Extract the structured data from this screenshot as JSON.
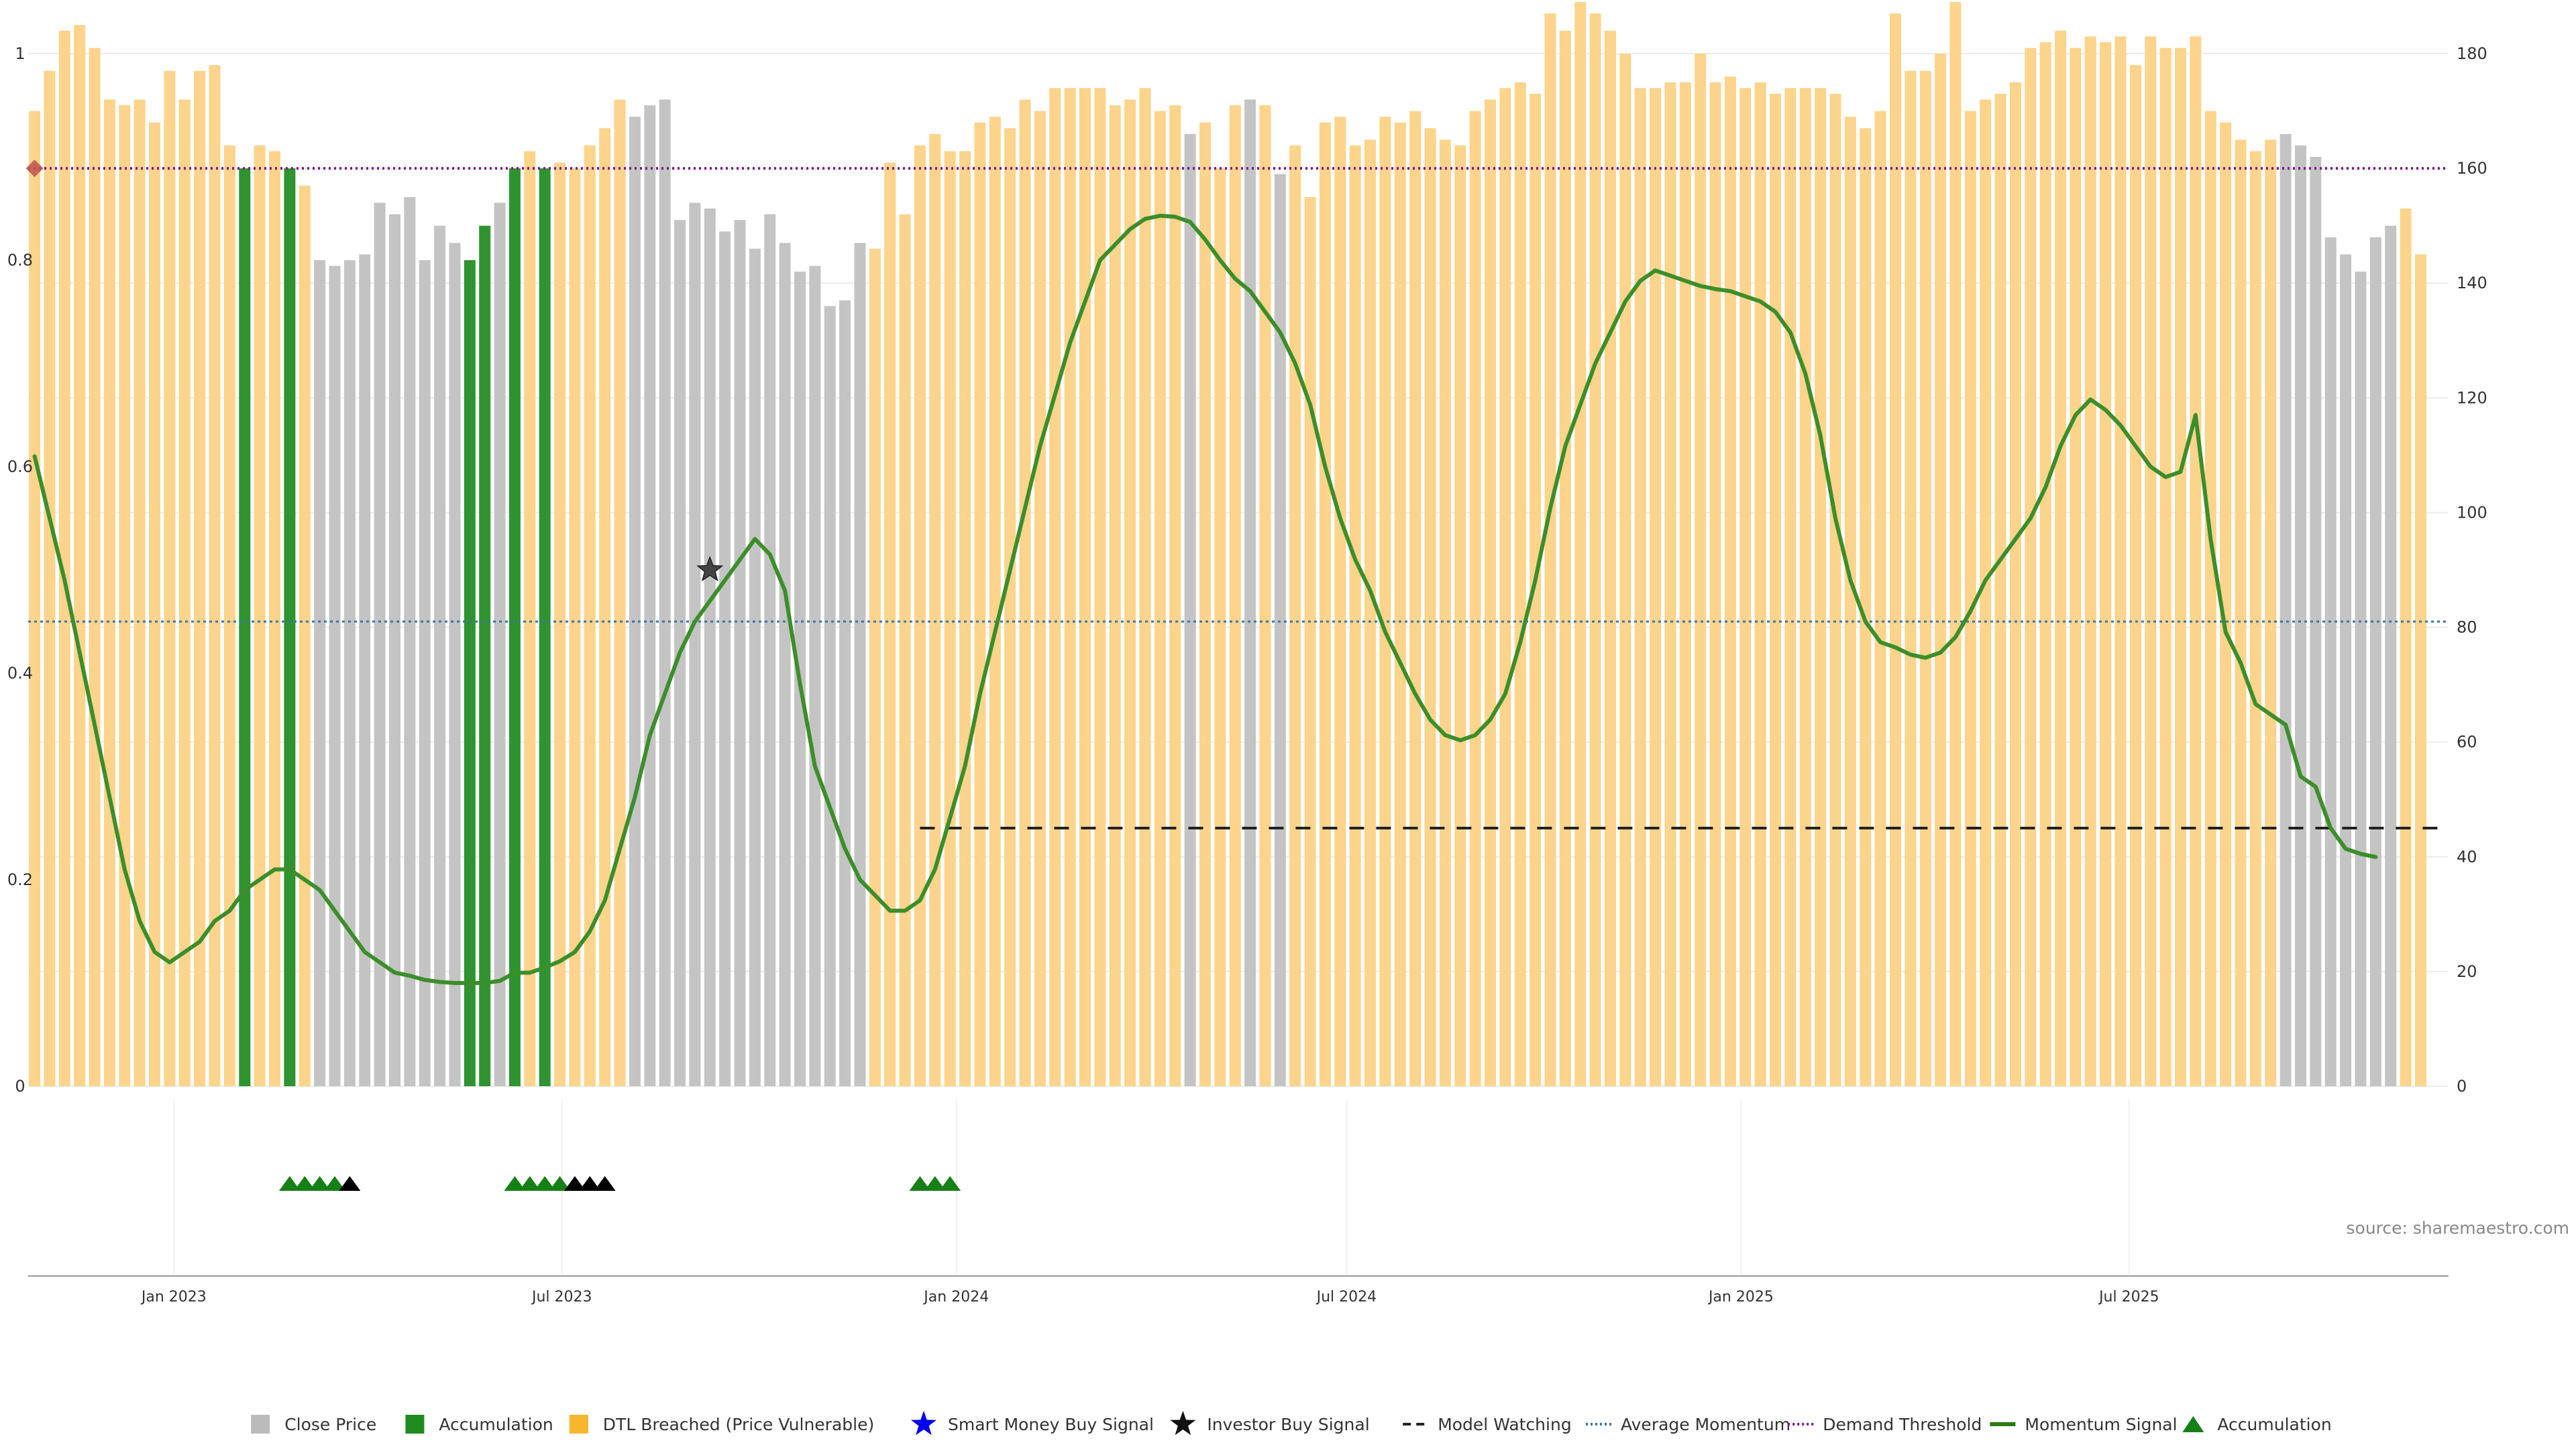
{
  "chart_data": {
    "type": "bar",
    "x_ticks": [
      "Jan 2023",
      "Jul 2023",
      "Jan 2024",
      "Jul 2024",
      "Jan 2025",
      "Jul 2025"
    ],
    "x_tick_dates": [
      "2023-01-01",
      "2023-07-01",
      "2024-01-01",
      "2024-07-01",
      "2025-01-01",
      "2025-07-01"
    ],
    "x_range": [
      "2022-10-25",
      "2025-11-27"
    ],
    "left_axis": {
      "ticks": [
        "0",
        "0.2",
        "0.4",
        "0.6",
        "0.8",
        "1"
      ],
      "range": [
        0,
        1
      ]
    },
    "right_axis": {
      "ticks": [
        "0",
        "20",
        "40",
        "60",
        "80",
        "100",
        "120",
        "140",
        "160",
        "180"
      ],
      "range": [
        0,
        180
      ]
    },
    "grid": true,
    "legend_position": "bottom",
    "bars": {
      "start_date": "2022-10-28",
      "interval": "week",
      "values": [
        170,
        177,
        184,
        185,
        181,
        172,
        171,
        172,
        168,
        177,
        172,
        177,
        178,
        164,
        160,
        164,
        163,
        160,
        157,
        144,
        143,
        144,
        145,
        154,
        152,
        155,
        144,
        150,
        147,
        144,
        150,
        154,
        160,
        163,
        160,
        161,
        160,
        164,
        167,
        172,
        169,
        171,
        172,
        151,
        154,
        153,
        149,
        151,
        146,
        152,
        147,
        142,
        143,
        136,
        137,
        147,
        146,
        161,
        152,
        164,
        166,
        163,
        163,
        168,
        169,
        167,
        172,
        170,
        174,
        174,
        174,
        174,
        171,
        172,
        174,
        170,
        171,
        166,
        168,
        160,
        171,
        172,
        171,
        159,
        164,
        155,
        168,
        169,
        164,
        165,
        169,
        168,
        170,
        167,
        165,
        164,
        170,
        172,
        174,
        175,
        173,
        187,
        184,
        189,
        187,
        184,
        180,
        174,
        174,
        175,
        175,
        180,
        175,
        176,
        174,
        175,
        173,
        174,
        174,
        174,
        173,
        169,
        167,
        170,
        187,
        177,
        177,
        180,
        189,
        170,
        172,
        173,
        175,
        181,
        182,
        184,
        181,
        183,
        182,
        183,
        178,
        183,
        181,
        181,
        183,
        170,
        168,
        165,
        163,
        165,
        166,
        164,
        162,
        148,
        145,
        142,
        148,
        150,
        153,
        145
      ],
      "category_by_index": {
        "14": "accumulation",
        "17": "accumulation",
        "29": "accumulation",
        "30": "accumulation",
        "32": "accumulation",
        "34": "accumulation"
      },
      "grey_ranges": [
        [
          19,
          31
        ],
        [
          40,
          55
        ],
        [
          77,
          77
        ],
        [
          81,
          81
        ],
        [
          83,
          83
        ],
        [
          150,
          157
        ]
      ]
    },
    "momentum_signal": {
      "start_date": "2022-10-28",
      "interval": "week",
      "values": [
        0.61,
        0.55,
        0.49,
        0.42,
        0.35,
        0.28,
        0.21,
        0.16,
        0.13,
        0.12,
        0.13,
        0.14,
        0.16,
        0.17,
        0.19,
        0.2,
        0.21,
        0.21,
        0.2,
        0.19,
        0.17,
        0.15,
        0.13,
        0.12,
        0.11,
        0.107,
        0.103,
        0.101,
        0.1,
        0.1,
        0.1,
        0.102,
        0.11,
        0.11,
        0.115,
        0.121,
        0.13,
        0.15,
        0.18,
        0.23,
        0.28,
        0.34,
        0.38,
        0.42,
        0.45,
        0.47,
        0.49,
        0.51,
        0.53,
        0.515,
        0.48,
        0.39,
        0.31,
        0.27,
        0.23,
        0.2,
        0.185,
        0.17,
        0.17,
        0.18,
        0.21,
        0.26,
        0.31,
        0.38,
        0.44,
        0.5,
        0.56,
        0.62,
        0.67,
        0.72,
        0.76,
        0.8,
        0.815,
        0.83,
        0.84,
        0.843,
        0.842,
        0.837,
        0.82,
        0.8,
        0.782,
        0.77,
        0.75,
        0.73,
        0.7,
        0.66,
        0.6,
        0.55,
        0.51,
        0.48,
        0.44,
        0.41,
        0.38,
        0.355,
        0.34,
        0.335,
        0.34,
        0.355,
        0.38,
        0.43,
        0.49,
        0.56,
        0.62,
        0.66,
        0.7,
        0.73,
        0.76,
        0.78,
        0.79,
        0.785,
        0.78,
        0.775,
        0.772,
        0.77,
        0.765,
        0.76,
        0.75,
        0.73,
        0.69,
        0.63,
        0.55,
        0.49,
        0.45,
        0.43,
        0.425,
        0.418,
        0.415,
        0.42,
        0.435,
        0.46,
        0.49,
        0.51,
        0.53,
        0.55,
        0.58,
        0.62,
        0.65,
        0.665,
        0.655,
        0.64,
        0.62,
        0.6,
        0.59,
        0.595,
        0.65,
        0.53,
        0.44,
        0.41,
        0.37,
        0.36,
        0.35,
        0.3,
        0.29,
        0.25,
        0.23,
        0.225,
        0.222
      ]
    },
    "demand_threshold": 160,
    "average_momentum": 0.45,
    "model_watching": {
      "value": 0.25,
      "from": "2023-12-15",
      "to": "2025-11-27"
    },
    "investor_buy_signal": {
      "date": "2023-09-08",
      "value": 0.5
    },
    "demand_marker": {
      "date": "2022-10-28",
      "value": 160
    },
    "accumulation_markers": [
      {
        "date": "2023-02-24",
        "type": "accumulation"
      },
      {
        "date": "2023-03-03",
        "type": "accumulation"
      },
      {
        "date": "2023-03-10",
        "type": "accumulation"
      },
      {
        "date": "2023-03-17",
        "type": "accumulation"
      },
      {
        "date": "2023-03-24",
        "type": "investor"
      },
      {
        "date": "2023-06-09",
        "type": "accumulation"
      },
      {
        "date": "2023-06-16",
        "type": "accumulation"
      },
      {
        "date": "2023-06-23",
        "type": "accumulation"
      },
      {
        "date": "2023-06-30",
        "type": "accumulation"
      },
      {
        "date": "2023-07-07",
        "type": "investor"
      },
      {
        "date": "2023-07-14",
        "type": "investor"
      },
      {
        "date": "2023-07-21",
        "type": "investor"
      },
      {
        "date": "2023-12-15",
        "type": "accumulation"
      },
      {
        "date": "2023-12-22",
        "type": "accumulation"
      },
      {
        "date": "2023-12-29",
        "type": "accumulation"
      }
    ],
    "legend": [
      {
        "label": "Close Price",
        "symbol": "square",
        "color": "#bbbbbb"
      },
      {
        "label": "Accumulation",
        "symbol": "square",
        "color": "#1e8c1e"
      },
      {
        "label": "DTL Breached (Price Vulnerable)",
        "symbol": "square",
        "color": "#f8b52e"
      },
      {
        "label": "Smart Money Buy Signal",
        "symbol": "star",
        "color": "#0000ee"
      },
      {
        "label": "Investor Buy Signal",
        "symbol": "star",
        "color": "#111111"
      },
      {
        "label": "Model Watching",
        "symbol": "dash",
        "color": "#222222"
      },
      {
        "label": "Average Momentum",
        "symbol": "dot",
        "color": "#3a74a8"
      },
      {
        "label": "Demand Threshold",
        "symbol": "dot",
        "color": "#7b1e86"
      },
      {
        "label": "Momentum Signal",
        "symbol": "line",
        "color": "#2b7a12"
      },
      {
        "label": "Accumulation",
        "symbol": "triangle",
        "color": "#158015"
      }
    ],
    "source": "source: sharemaestro.com"
  },
  "colors": {
    "close": "#c4c4c4",
    "accumulation": "#2f942f",
    "dtl": "#fcd48c",
    "momentum": "#3c8e2a",
    "threshold": "#7b1e86",
    "average": "#3a74a8",
    "watching": "#222222",
    "marker_green": "#158015",
    "marker_black": "#000000",
    "demand_marker": "#c0504d"
  }
}
